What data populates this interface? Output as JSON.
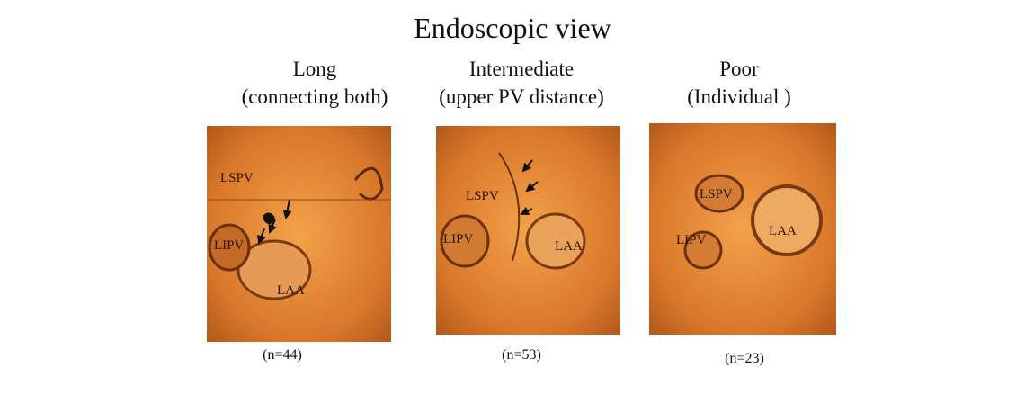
{
  "title": "Endoscopic view",
  "panels": [
    {
      "heading": [
        "Long",
        "(connecting both)"
      ],
      "labels": [
        "LSPV",
        "LIPV",
        "LAA"
      ],
      "count": "(n=44)"
    },
    {
      "heading": [
        "Intermediate",
        "(upper PV distance)"
      ],
      "labels": [
        "LSPV",
        "LIPV",
        "LAA"
      ],
      "count": "(n=53)"
    },
    {
      "heading": [
        "Poor",
        "(Individual )"
      ],
      "labels": [
        "LSPV",
        "LIPV",
        "LAA"
      ],
      "count": "(n=23)"
    }
  ]
}
